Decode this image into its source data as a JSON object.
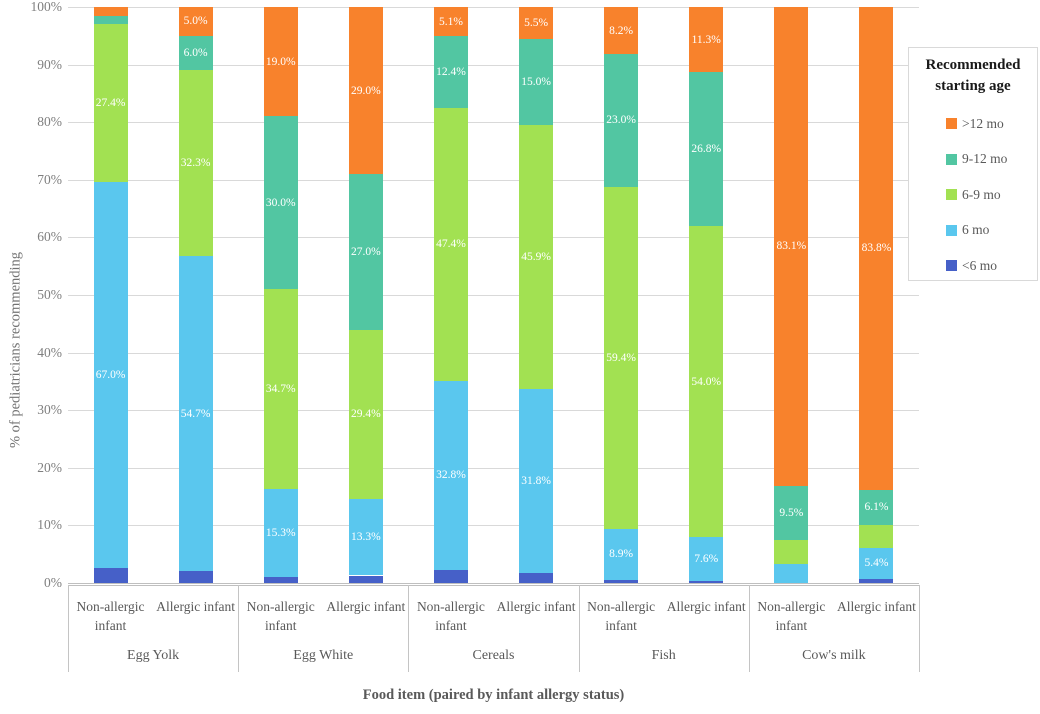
{
  "chart_data": {
    "type": "bar",
    "stacked": true,
    "title": "",
    "ylabel": "% of pediatricians recommending",
    "xlabel": "Food item (paired by infant allergy status)",
    "ylim": [
      0,
      100
    ],
    "grid": true,
    "yticks": [
      "0%",
      "10%",
      "20%",
      "30%",
      "40%",
      "50%",
      "60%",
      "70%",
      "80%",
      "90%",
      "100%"
    ],
    "groups": [
      "Egg Yolk",
      "Egg White",
      "Cereals",
      "Fish",
      "Cow's milk"
    ],
    "subcategories": [
      "Non-allergic infant",
      "Allergic infant"
    ],
    "series": [
      {
        "name": "<6 mo",
        "color": "#4660c8",
        "values": [
          2.6,
          2.0,
          1.0,
          1.3,
          2.3,
          1.8,
          0.5,
          0.3,
          0.0,
          0.7
        ]
      },
      {
        "name": "6 mo",
        "color": "#5ac7ee",
        "values": [
          67.0,
          54.7,
          15.3,
          13.3,
          32.8,
          31.8,
          8.9,
          7.6,
          3.3,
          5.4
        ]
      },
      {
        "name": "6-9 mo",
        "color": "#a2e152",
        "values": [
          27.4,
          32.3,
          34.7,
          29.4,
          47.4,
          45.9,
          59.4,
          54.0,
          4.1,
          4.0
        ]
      },
      {
        "name": "9-12 mo",
        "color": "#52c6a2",
        "values": [
          1.4,
          6.0,
          30.0,
          27.0,
          12.4,
          15.0,
          23.0,
          26.8,
          9.5,
          6.1
        ]
      },
      {
        "name": ">12 mo",
        "color": "#f8822c",
        "values": [
          1.6,
          5.0,
          19.0,
          29.0,
          5.1,
          5.5,
          8.2,
          11.3,
          83.1,
          83.8
        ]
      }
    ],
    "label_min_value": 5.0,
    "label_format": "#.#%",
    "legend": {
      "title": "Recommended starting age",
      "position": "right",
      "entries": [
        ">12 mo",
        "9-12 mo",
        "6-9 mo",
        "6 mo",
        "<6 mo"
      ]
    },
    "colors": {
      "gridline": "#d9d9d9",
      "axis_text": "#7f7f7f",
      "category_text": "#595959",
      "data_label_text": "#ffffff"
    }
  }
}
